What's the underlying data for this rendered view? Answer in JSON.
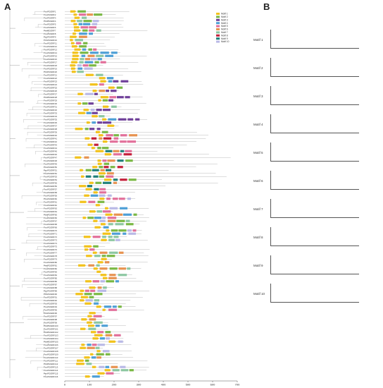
{
  "panels": {
    "a": "A",
    "b": "B"
  },
  "legend": {
    "items": [
      "Motif 1",
      "Motif 2",
      "Motif 3",
      "Motif 4",
      "Motif 5",
      "Motif 6",
      "Motif 7",
      "Motif 8",
      "Motif 9",
      "Motif 10"
    ],
    "colors": [
      "#f2c21b",
      "#79b843",
      "#6f3f99",
      "#4d9fd6",
      "#e26f9a",
      "#e7924f",
      "#8cc7a1",
      "#c41f3a",
      "#1f7f7a",
      "#b9b9e6"
    ]
  },
  "axis": {
    "ticks": [
      "0",
      "100",
      "200",
      "300",
      "400",
      "500",
      "600",
      "700"
    ],
    "xlim": [
      0,
      700
    ]
  },
  "gene_prefix": "PmAP2/ERF",
  "n_genes": 116,
  "motif_logos": [
    {
      "label": "Motif 1"
    },
    {
      "label": "Motif 2"
    },
    {
      "label": "Motif 3"
    },
    {
      "label": "Motif 4"
    },
    {
      "label": "Motif 5"
    },
    {
      "label": "Motif 6"
    },
    {
      "label": "Motif 7"
    },
    {
      "label": "Motif 8"
    },
    {
      "label": "Motif 9"
    },
    {
      "label": "Motif 10"
    }
  ]
}
